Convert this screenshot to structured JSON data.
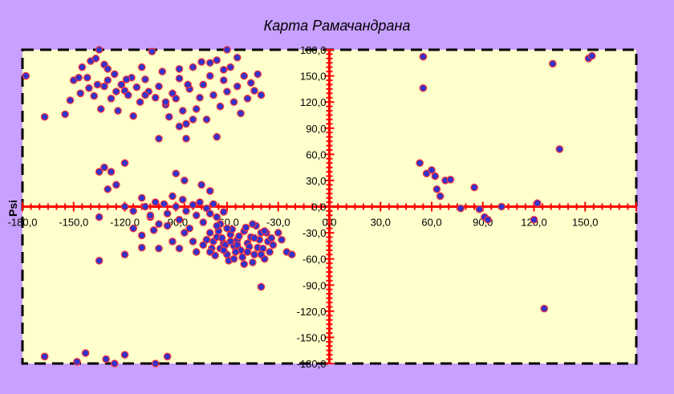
{
  "colors": {
    "background": "#c8a0ff",
    "plot_area": "#ffffcc",
    "border": "#000000",
    "axis": "#ff0000",
    "marker_fill": "#3333cc",
    "marker_edge": "#ff3333"
  },
  "chart_data": {
    "type": "scatter",
    "title": "Карта Рамачандрана",
    "xlabel": "",
    "ylabel": "Psi",
    "xlim": [
      -180,
      180
    ],
    "ylim": [
      -180,
      180
    ],
    "x_ticks": [
      -180,
      -150,
      -120,
      -90,
      -60,
      -30,
      0,
      30,
      60,
      90,
      120,
      150
    ],
    "x_tick_labels": [
      "-180,0",
      "-150,0",
      "-120,0",
      "-90,0",
      "-60,0",
      "-30,0",
      "0,0",
      "30,0",
      "60,0",
      "90,0",
      "120,0",
      "150,0"
    ],
    "y_ticks": [
      180,
      150,
      120,
      90,
      60,
      30,
      0,
      -30,
      -60,
      -90,
      -120,
      -150,
      -180
    ],
    "y_tick_labels": [
      "180,0",
      "150,0",
      "120,0",
      "90,0",
      "60,0",
      "30,0",
      "0,0",
      "-30,0",
      "-60,0",
      "-90,0",
      "-120,0",
      "-150,0",
      "-180,0"
    ],
    "grid": false,
    "legend": "none",
    "series": [
      {
        "points": [
          [
            -178,
            150
          ],
          [
            -167,
            103
          ],
          [
            -155,
            106
          ],
          [
            -150,
            145
          ],
          [
            -147,
            148
          ],
          [
            -145,
            160
          ],
          [
            -142,
            148
          ],
          [
            -140,
            167
          ],
          [
            -137,
            170
          ],
          [
            -135,
            180
          ],
          [
            -132,
            163
          ],
          [
            -130,
            158
          ],
          [
            -138,
            127
          ],
          [
            -136,
            140
          ],
          [
            -134,
            112
          ],
          [
            -132,
            138
          ],
          [
            -130,
            145
          ],
          [
            -128,
            124
          ],
          [
            -126,
            152
          ],
          [
            -124,
            110
          ],
          [
            -122,
            140
          ],
          [
            -120,
            133
          ],
          [
            -118,
            128
          ],
          [
            -116,
            148
          ],
          [
            -115,
            104
          ],
          [
            -113,
            137
          ],
          [
            -111,
            120
          ],
          [
            -110,
            160
          ],
          [
            -108,
            146
          ],
          [
            -106,
            132
          ],
          [
            -104,
            178
          ],
          [
            -102,
            125
          ],
          [
            -100,
            138
          ],
          [
            -98,
            155
          ],
          [
            -96,
            117
          ],
          [
            -94,
            103
          ],
          [
            -92,
            130
          ],
          [
            -90,
            124
          ],
          [
            -88,
            147
          ],
          [
            -86,
            110
          ],
          [
            -84,
            95
          ],
          [
            -82,
            135
          ],
          [
            -80,
            160
          ],
          [
            -78,
            112
          ],
          [
            -76,
            125
          ],
          [
            -74,
            140
          ],
          [
            -72,
            100
          ],
          [
            -70,
            150
          ],
          [
            -68,
            128
          ],
          [
            -66,
            80
          ],
          [
            -64,
            115
          ],
          [
            -62,
            145
          ],
          [
            -60,
            132
          ],
          [
            -58,
            160
          ],
          [
            -56,
            120
          ],
          [
            -54,
            138
          ],
          [
            -52,
            107
          ],
          [
            -50,
            150
          ],
          [
            -48,
            124
          ],
          [
            -46,
            142
          ],
          [
            -44,
            133
          ],
          [
            -42,
            152
          ],
          [
            -40,
            128
          ],
          [
            -60,
            180
          ],
          [
            -66,
            168
          ],
          [
            -75,
            166
          ],
          [
            -88,
            158
          ],
          [
            -96,
            120
          ],
          [
            -108,
            128
          ],
          [
            -119,
            146
          ],
          [
            -125,
            132
          ],
          [
            -141,
            136
          ],
          [
            -146,
            130
          ],
          [
            -152,
            122
          ],
          [
            -100,
            78
          ],
          [
            -88,
            92
          ],
          [
            -84,
            78
          ],
          [
            -70,
            165
          ],
          [
            -62,
            157
          ],
          [
            -54,
            171
          ],
          [
            -80,
            100
          ],
          [
            -83,
            140
          ],
          [
            -120,
            50
          ],
          [
            -132,
            45
          ],
          [
            -128,
            40
          ],
          [
            -135,
            40
          ],
          [
            -125,
            25
          ],
          [
            -130,
            20
          ],
          [
            -90,
            38
          ],
          [
            -85,
            30
          ],
          [
            -75,
            25
          ],
          [
            -70,
            18
          ],
          [
            -135,
            -12
          ],
          [
            -120,
            0
          ],
          [
            -115,
            -5
          ],
          [
            -110,
            10
          ],
          [
            -108,
            0
          ],
          [
            -105,
            -12
          ],
          [
            -102,
            5
          ],
          [
            -100,
            -20
          ],
          [
            -97,
            3
          ],
          [
            -95,
            -8
          ],
          [
            -92,
            12
          ],
          [
            -90,
            0
          ],
          [
            -88,
            -15
          ],
          [
            -86,
            8
          ],
          [
            -84,
            -5
          ],
          [
            -82,
            -25
          ],
          [
            -80,
            2
          ],
          [
            -78,
            -10
          ],
          [
            -76,
            5
          ],
          [
            -74,
            -18
          ],
          [
            -72,
            -2
          ],
          [
            -70,
            -8
          ],
          [
            -68,
            3
          ],
          [
            -66,
            -12
          ],
          [
            -64,
            -20
          ],
          [
            -62,
            -6
          ],
          [
            -115,
            -25
          ],
          [
            -110,
            -33
          ],
          [
            -105,
            -10
          ],
          [
            -100,
            -48
          ],
          [
            -95,
            -22
          ],
          [
            -92,
            -40
          ],
          [
            -88,
            -48
          ],
          [
            -85,
            -30
          ],
          [
            -120,
            -55
          ],
          [
            -135,
            -62
          ],
          [
            -110,
            -47
          ],
          [
            -103,
            -27
          ],
          [
            -88,
            -15
          ],
          [
            -80,
            -40
          ],
          [
            -78,
            -52
          ],
          [
            -70,
            -30
          ],
          [
            -68,
            -40
          ],
          [
            -66,
            -35
          ],
          [
            -64,
            -48
          ],
          [
            -62,
            -42
          ],
          [
            -60,
            -55
          ],
          [
            -58,
            -32
          ],
          [
            -56,
            -45
          ],
          [
            -54,
            -38
          ],
          [
            -52,
            -50
          ],
          [
            -50,
            -28
          ],
          [
            -48,
            -42
          ],
          [
            -46,
            -35
          ],
          [
            -44,
            -55
          ],
          [
            -42,
            -47
          ],
          [
            -40,
            -30
          ],
          [
            -38,
            -60
          ],
          [
            -36,
            -40
          ],
          [
            -72,
            -38
          ],
          [
            -69,
            -48
          ],
          [
            -67,
            -56
          ],
          [
            -65,
            -28
          ],
          [
            -63,
            -36
          ],
          [
            -61,
            -44
          ],
          [
            -59,
            -62
          ],
          [
            -57,
            -26
          ],
          [
            -55,
            -52
          ],
          [
            -53,
            -34
          ],
          [
            -51,
            -58
          ],
          [
            -49,
            -24
          ],
          [
            -47,
            -46
          ],
          [
            -45,
            -64
          ],
          [
            -43,
            -22
          ],
          [
            -41,
            -38
          ],
          [
            -39,
            -48
          ],
          [
            -37,
            -30
          ],
          [
            -35,
            -52
          ],
          [
            -33,
            -44
          ],
          [
            -50,
            -66
          ],
          [
            -60,
            -25
          ],
          [
            -66,
            -22
          ],
          [
            -45,
            -20
          ],
          [
            -40,
            -55
          ],
          [
            -30,
            -30
          ],
          [
            -28,
            -38
          ],
          [
            -25,
            -52
          ],
          [
            -22,
            -55
          ],
          [
            -58,
            -40
          ],
          [
            -54,
            -44
          ],
          [
            -48,
            -52
          ],
          [
            -44,
            -36
          ],
          [
            -62,
            -50
          ],
          [
            -56,
            -60
          ],
          [
            -38,
            -28
          ],
          [
            -34,
            -36
          ],
          [
            -70,
            -52
          ],
          [
            -74,
            -44
          ],
          [
            -40,
            -92
          ],
          [
            -167,
            -172
          ],
          [
            -148,
            -178
          ],
          [
            -143,
            -168
          ],
          [
            -131,
            -175
          ],
          [
            -126,
            -180
          ],
          [
            -120,
            -170
          ],
          [
            -102,
            -180
          ],
          [
            -95,
            -172
          ],
          [
            55,
            172
          ],
          [
            55,
            136
          ],
          [
            53,
            50
          ],
          [
            57,
            38
          ],
          [
            60,
            42
          ],
          [
            62,
            35
          ],
          [
            63,
            20
          ],
          [
            65,
            12
          ],
          [
            68,
            30
          ],
          [
            71,
            31
          ],
          [
            77,
            -2
          ],
          [
            85,
            22
          ],
          [
            88,
            -3
          ],
          [
            91,
            -12
          ],
          [
            93,
            -15
          ],
          [
            101,
            0
          ],
          [
            120,
            -15
          ],
          [
            122,
            4
          ],
          [
            126,
            -117
          ],
          [
            131,
            164
          ],
          [
            135,
            66
          ],
          [
            152,
            170
          ],
          [
            154,
            173
          ]
        ]
      }
    ]
  }
}
